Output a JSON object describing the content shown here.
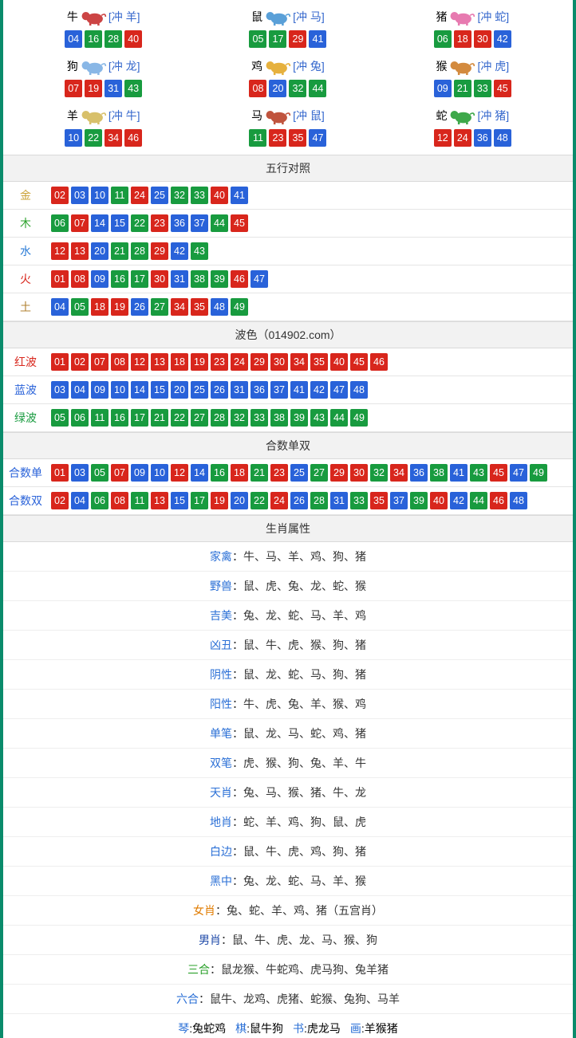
{
  "colors": {
    "red": "#d8261c",
    "blue": "#2962d9",
    "green": "#189b3f",
    "border": "#0a8b6b",
    "header_bg": "#f2f2f2",
    "row_border": "#e5e5e5"
  },
  "zodiac": [
    {
      "name": "牛",
      "clash": "[冲 羊]",
      "icon_color": "#c44",
      "numbers": [
        {
          "n": "04",
          "c": "blue"
        },
        {
          "n": "16",
          "c": "green"
        },
        {
          "n": "28",
          "c": "green"
        },
        {
          "n": "40",
          "c": "red"
        }
      ]
    },
    {
      "name": "鼠",
      "clash": "[冲 马]",
      "icon_color": "#5aa0d8",
      "numbers": [
        {
          "n": "05",
          "c": "green"
        },
        {
          "n": "17",
          "c": "green"
        },
        {
          "n": "29",
          "c": "red"
        },
        {
          "n": "41",
          "c": "blue"
        }
      ]
    },
    {
      "name": "猪",
      "clash": "[冲 蛇]",
      "icon_color": "#e77ab0",
      "numbers": [
        {
          "n": "06",
          "c": "green"
        },
        {
          "n": "18",
          "c": "red"
        },
        {
          "n": "30",
          "c": "red"
        },
        {
          "n": "42",
          "c": "blue"
        }
      ]
    },
    {
      "name": "狗",
      "clash": "[冲 龙]",
      "icon_color": "#89b7e6",
      "numbers": [
        {
          "n": "07",
          "c": "red"
        },
        {
          "n": "19",
          "c": "red"
        },
        {
          "n": "31",
          "c": "blue"
        },
        {
          "n": "43",
          "c": "green"
        }
      ]
    },
    {
      "name": "鸡",
      "clash": "[冲 兔]",
      "icon_color": "#e6b13e",
      "numbers": [
        {
          "n": "08",
          "c": "red"
        },
        {
          "n": "20",
          "c": "blue"
        },
        {
          "n": "32",
          "c": "green"
        },
        {
          "n": "44",
          "c": "green"
        }
      ]
    },
    {
      "name": "猴",
      "clash": "[冲 虎]",
      "icon_color": "#d38a3e",
      "numbers": [
        {
          "n": "09",
          "c": "blue"
        },
        {
          "n": "21",
          "c": "green"
        },
        {
          "n": "33",
          "c": "green"
        },
        {
          "n": "45",
          "c": "red"
        }
      ]
    },
    {
      "name": "羊",
      "clash": "[冲 牛]",
      "icon_color": "#d8c06a",
      "numbers": [
        {
          "n": "10",
          "c": "blue"
        },
        {
          "n": "22",
          "c": "green"
        },
        {
          "n": "34",
          "c": "red"
        },
        {
          "n": "46",
          "c": "red"
        }
      ]
    },
    {
      "name": "马",
      "clash": "[冲 鼠]",
      "icon_color": "#c0543e",
      "numbers": [
        {
          "n": "11",
          "c": "green"
        },
        {
          "n": "23",
          "c": "red"
        },
        {
          "n": "35",
          "c": "red"
        },
        {
          "n": "47",
          "c": "blue"
        }
      ]
    },
    {
      "name": "蛇",
      "clash": "[冲 猪]",
      "icon_color": "#3ea84a",
      "numbers": [
        {
          "n": "12",
          "c": "red"
        },
        {
          "n": "24",
          "c": "red"
        },
        {
          "n": "36",
          "c": "blue"
        },
        {
          "n": "48",
          "c": "blue"
        }
      ]
    }
  ],
  "sections": {
    "wuxing": {
      "title": "五行对照",
      "rows": [
        {
          "label": "金",
          "label_color": "#cca43b",
          "nums": [
            {
              "n": "02",
              "c": "red"
            },
            {
              "n": "03",
              "c": "blue"
            },
            {
              "n": "10",
              "c": "blue"
            },
            {
              "n": "11",
              "c": "green"
            },
            {
              "n": "24",
              "c": "red"
            },
            {
              "n": "25",
              "c": "blue"
            },
            {
              "n": "32",
              "c": "green"
            },
            {
              "n": "33",
              "c": "green"
            },
            {
              "n": "40",
              "c": "red"
            },
            {
              "n": "41",
              "c": "blue"
            }
          ]
        },
        {
          "label": "木",
          "label_color": "#2aa02a",
          "nums": [
            {
              "n": "06",
              "c": "green"
            },
            {
              "n": "07",
              "c": "red"
            },
            {
              "n": "14",
              "c": "blue"
            },
            {
              "n": "15",
              "c": "blue"
            },
            {
              "n": "22",
              "c": "green"
            },
            {
              "n": "23",
              "c": "red"
            },
            {
              "n": "36",
              "c": "blue"
            },
            {
              "n": "37",
              "c": "blue"
            },
            {
              "n": "44",
              "c": "green"
            },
            {
              "n": "45",
              "c": "red"
            }
          ]
        },
        {
          "label": "水",
          "label_color": "#2a7bd6",
          "nums": [
            {
              "n": "12",
              "c": "red"
            },
            {
              "n": "13",
              "c": "red"
            },
            {
              "n": "20",
              "c": "blue"
            },
            {
              "n": "21",
              "c": "green"
            },
            {
              "n": "28",
              "c": "green"
            },
            {
              "n": "29",
              "c": "red"
            },
            {
              "n": "42",
              "c": "blue"
            },
            {
              "n": "43",
              "c": "green"
            }
          ]
        },
        {
          "label": "火",
          "label_color": "#d8261c",
          "nums": [
            {
              "n": "01",
              "c": "red"
            },
            {
              "n": "08",
              "c": "red"
            },
            {
              "n": "09",
              "c": "blue"
            },
            {
              "n": "16",
              "c": "green"
            },
            {
              "n": "17",
              "c": "green"
            },
            {
              "n": "30",
              "c": "red"
            },
            {
              "n": "31",
              "c": "blue"
            },
            {
              "n": "38",
              "c": "green"
            },
            {
              "n": "39",
              "c": "green"
            },
            {
              "n": "46",
              "c": "red"
            },
            {
              "n": "47",
              "c": "blue"
            }
          ]
        },
        {
          "label": "土",
          "label_color": "#b08030",
          "nums": [
            {
              "n": "04",
              "c": "blue"
            },
            {
              "n": "05",
              "c": "green"
            },
            {
              "n": "18",
              "c": "red"
            },
            {
              "n": "19",
              "c": "red"
            },
            {
              "n": "26",
              "c": "blue"
            },
            {
              "n": "27",
              "c": "green"
            },
            {
              "n": "34",
              "c": "red"
            },
            {
              "n": "35",
              "c": "red"
            },
            {
              "n": "48",
              "c": "blue"
            },
            {
              "n": "49",
              "c": "green"
            }
          ]
        }
      ]
    },
    "bose": {
      "title": "波色（014902.com）",
      "rows": [
        {
          "label": "红波",
          "label_color": "#d8261c",
          "nums": [
            {
              "n": "01",
              "c": "red"
            },
            {
              "n": "02",
              "c": "red"
            },
            {
              "n": "07",
              "c": "red"
            },
            {
              "n": "08",
              "c": "red"
            },
            {
              "n": "12",
              "c": "red"
            },
            {
              "n": "13",
              "c": "red"
            },
            {
              "n": "18",
              "c": "red"
            },
            {
              "n": "19",
              "c": "red"
            },
            {
              "n": "23",
              "c": "red"
            },
            {
              "n": "24",
              "c": "red"
            },
            {
              "n": "29",
              "c": "red"
            },
            {
              "n": "30",
              "c": "red"
            },
            {
              "n": "34",
              "c": "red"
            },
            {
              "n": "35",
              "c": "red"
            },
            {
              "n": "40",
              "c": "red"
            },
            {
              "n": "45",
              "c": "red"
            },
            {
              "n": "46",
              "c": "red"
            }
          ]
        },
        {
          "label": "蓝波",
          "label_color": "#2962d9",
          "nums": [
            {
              "n": "03",
              "c": "blue"
            },
            {
              "n": "04",
              "c": "blue"
            },
            {
              "n": "09",
              "c": "blue"
            },
            {
              "n": "10",
              "c": "blue"
            },
            {
              "n": "14",
              "c": "blue"
            },
            {
              "n": "15",
              "c": "blue"
            },
            {
              "n": "20",
              "c": "blue"
            },
            {
              "n": "25",
              "c": "blue"
            },
            {
              "n": "26",
              "c": "blue"
            },
            {
              "n": "31",
              "c": "blue"
            },
            {
              "n": "36",
              "c": "blue"
            },
            {
              "n": "37",
              "c": "blue"
            },
            {
              "n": "41",
              "c": "blue"
            },
            {
              "n": "42",
              "c": "blue"
            },
            {
              "n": "47",
              "c": "blue"
            },
            {
              "n": "48",
              "c": "blue"
            }
          ]
        },
        {
          "label": "绿波",
          "label_color": "#189b3f",
          "nums": [
            {
              "n": "05",
              "c": "green"
            },
            {
              "n": "06",
              "c": "green"
            },
            {
              "n": "11",
              "c": "green"
            },
            {
              "n": "16",
              "c": "green"
            },
            {
              "n": "17",
              "c": "green"
            },
            {
              "n": "21",
              "c": "green"
            },
            {
              "n": "22",
              "c": "green"
            },
            {
              "n": "27",
              "c": "green"
            },
            {
              "n": "28",
              "c": "green"
            },
            {
              "n": "32",
              "c": "green"
            },
            {
              "n": "33",
              "c": "green"
            },
            {
              "n": "38",
              "c": "green"
            },
            {
              "n": "39",
              "c": "green"
            },
            {
              "n": "43",
              "c": "green"
            },
            {
              "n": "44",
              "c": "green"
            },
            {
              "n": "49",
              "c": "green"
            }
          ]
        }
      ]
    },
    "heshu": {
      "title": "合数单双",
      "rows": [
        {
          "label": "合数单",
          "label_color": "#2962d9",
          "nums": [
            {
              "n": "01",
              "c": "red"
            },
            {
              "n": "03",
              "c": "blue"
            },
            {
              "n": "05",
              "c": "green"
            },
            {
              "n": "07",
              "c": "red"
            },
            {
              "n": "09",
              "c": "blue"
            },
            {
              "n": "10",
              "c": "blue"
            },
            {
              "n": "12",
              "c": "red"
            },
            {
              "n": "14",
              "c": "blue"
            },
            {
              "n": "16",
              "c": "green"
            },
            {
              "n": "18",
              "c": "red"
            },
            {
              "n": "21",
              "c": "green"
            },
            {
              "n": "23",
              "c": "red"
            },
            {
              "n": "25",
              "c": "blue"
            },
            {
              "n": "27",
              "c": "green"
            },
            {
              "n": "29",
              "c": "red"
            },
            {
              "n": "30",
              "c": "red"
            },
            {
              "n": "32",
              "c": "green"
            },
            {
              "n": "34",
              "c": "red"
            },
            {
              "n": "36",
              "c": "blue"
            },
            {
              "n": "38",
              "c": "green"
            },
            {
              "n": "41",
              "c": "blue"
            },
            {
              "n": "43",
              "c": "green"
            },
            {
              "n": "45",
              "c": "red"
            },
            {
              "n": "47",
              "c": "blue"
            },
            {
              "n": "49",
              "c": "green"
            }
          ]
        },
        {
          "label": "合数双",
          "label_color": "#2962d9",
          "nums": [
            {
              "n": "02",
              "c": "red"
            },
            {
              "n": "04",
              "c": "blue"
            },
            {
              "n": "06",
              "c": "green"
            },
            {
              "n": "08",
              "c": "red"
            },
            {
              "n": "11",
              "c": "green"
            },
            {
              "n": "13",
              "c": "red"
            },
            {
              "n": "15",
              "c": "blue"
            },
            {
              "n": "17",
              "c": "green"
            },
            {
              "n": "19",
              "c": "red"
            },
            {
              "n": "20",
              "c": "blue"
            },
            {
              "n": "22",
              "c": "green"
            },
            {
              "n": "24",
              "c": "red"
            },
            {
              "n": "26",
              "c": "blue"
            },
            {
              "n": "28",
              "c": "green"
            },
            {
              "n": "31",
              "c": "blue"
            },
            {
              "n": "33",
              "c": "green"
            },
            {
              "n": "35",
              "c": "red"
            },
            {
              "n": "37",
              "c": "blue"
            },
            {
              "n": "39",
              "c": "green"
            },
            {
              "n": "40",
              "c": "red"
            },
            {
              "n": "42",
              "c": "blue"
            },
            {
              "n": "44",
              "c": "green"
            },
            {
              "n": "46",
              "c": "red"
            },
            {
              "n": "48",
              "c": "blue"
            }
          ]
        }
      ]
    },
    "attrs": {
      "title": "生肖属性",
      "rows": [
        {
          "label": "家禽",
          "label_color": "#2a6fd6",
          "val": "：牛、马、羊、鸡、狗、猪"
        },
        {
          "label": "野兽",
          "label_color": "#2a6fd6",
          "val": "：鼠、虎、兔、龙、蛇、猴"
        },
        {
          "label": "吉美",
          "label_color": "#2a6fd6",
          "val": "：兔、龙、蛇、马、羊、鸡"
        },
        {
          "label": "凶丑",
          "label_color": "#2a6fd6",
          "val": "：鼠、牛、虎、猴、狗、猪"
        },
        {
          "label": "阴性",
          "label_color": "#2a6fd6",
          "val": "：鼠、龙、蛇、马、狗、猪"
        },
        {
          "label": "阳性",
          "label_color": "#2a6fd6",
          "val": "：牛、虎、兔、羊、猴、鸡"
        },
        {
          "label": "单笔",
          "label_color": "#2a6fd6",
          "val": "：鼠、龙、马、蛇、鸡、猪"
        },
        {
          "label": "双笔",
          "label_color": "#2a6fd6",
          "val": "：虎、猴、狗、兔、羊、牛"
        },
        {
          "label": "天肖",
          "label_color": "#2a6fd6",
          "val": "：兔、马、猴、猪、牛、龙"
        },
        {
          "label": "地肖",
          "label_color": "#2a6fd6",
          "val": "：蛇、羊、鸡、狗、鼠、虎"
        },
        {
          "label": "白边",
          "label_color": "#2a6fd6",
          "val": "：鼠、牛、虎、鸡、狗、猪"
        },
        {
          "label": "黑中",
          "label_color": "#2a6fd6",
          "val": "：兔、龙、蛇、马、羊、猴"
        },
        {
          "label": "女肖",
          "label_color": "#e07b00",
          "val": "：兔、蛇、羊、鸡、猪（五宫肖）"
        },
        {
          "label": "男肖",
          "label_color": "#1f4aa8",
          "val": "：鼠、牛、虎、龙、马、猴、狗"
        },
        {
          "label": "三合",
          "label_color": "#2aa02a",
          "val": "：鼠龙猴、牛蛇鸡、虎马狗、兔羊猪"
        },
        {
          "label": "六合",
          "label_color": "#2a6fd6",
          "val": "：鼠牛、龙鸡、虎猪、蛇猴、兔狗、马羊"
        }
      ]
    },
    "bottom": [
      {
        "k": "琴",
        "v": ":兔蛇鸡"
      },
      {
        "k": "棋",
        "v": ":鼠牛狗"
      },
      {
        "k": "书",
        "v": ":虎龙马"
      },
      {
        "k": "画",
        "v": ":羊猴猪"
      }
    ]
  }
}
